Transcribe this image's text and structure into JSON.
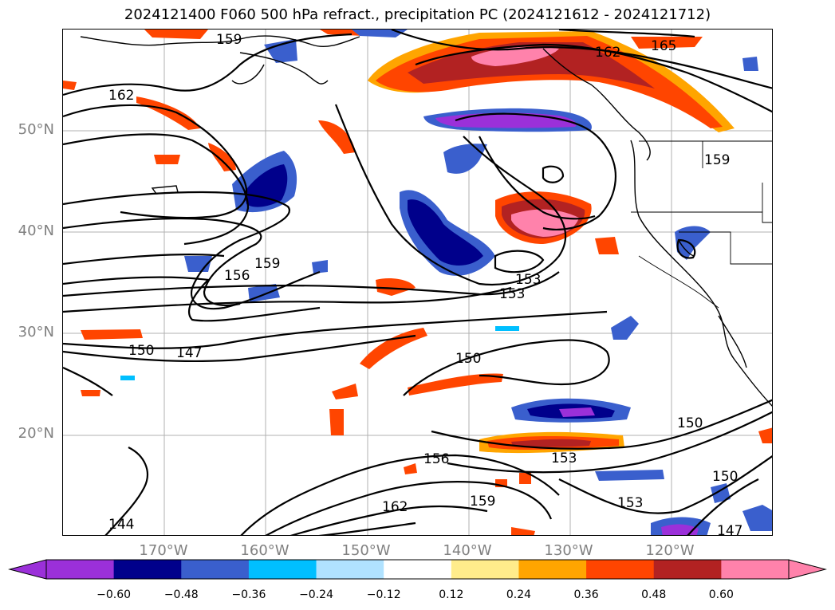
{
  "title": "2024121400 F060 500 hPa refract., precipitation PC (2024121612 - 2024121712)",
  "lat_labels": [
    "50°N",
    "40°N",
    "30°N",
    "20°N"
  ],
  "lon_labels": [
    "170°W",
    "160°W",
    "150°W",
    "140°W",
    "130°W",
    "120°W"
  ],
  "contour_labels": [
    "159",
    "162",
    "165",
    "162",
    "159",
    "156",
    "159",
    "153",
    "153",
    "150",
    "147",
    "150",
    "150",
    "156",
    "159",
    "162",
    "153",
    "153",
    "150",
    "144",
    "147"
  ],
  "colorbar": {
    "ticks": [
      "−0.60",
      "−0.48",
      "−0.36",
      "−0.24",
      "−0.12",
      "0.12",
      "0.24",
      "0.36",
      "0.48",
      "0.60"
    ],
    "colors": [
      "#9b30d9",
      "#00008b",
      "#3a5fcd",
      "#00bfff",
      "#b0e2ff",
      "#ffffff",
      "#ffec8b",
      "#ffa500",
      "#ff4500",
      "#b22222",
      "#ff82ab"
    ]
  }
}
